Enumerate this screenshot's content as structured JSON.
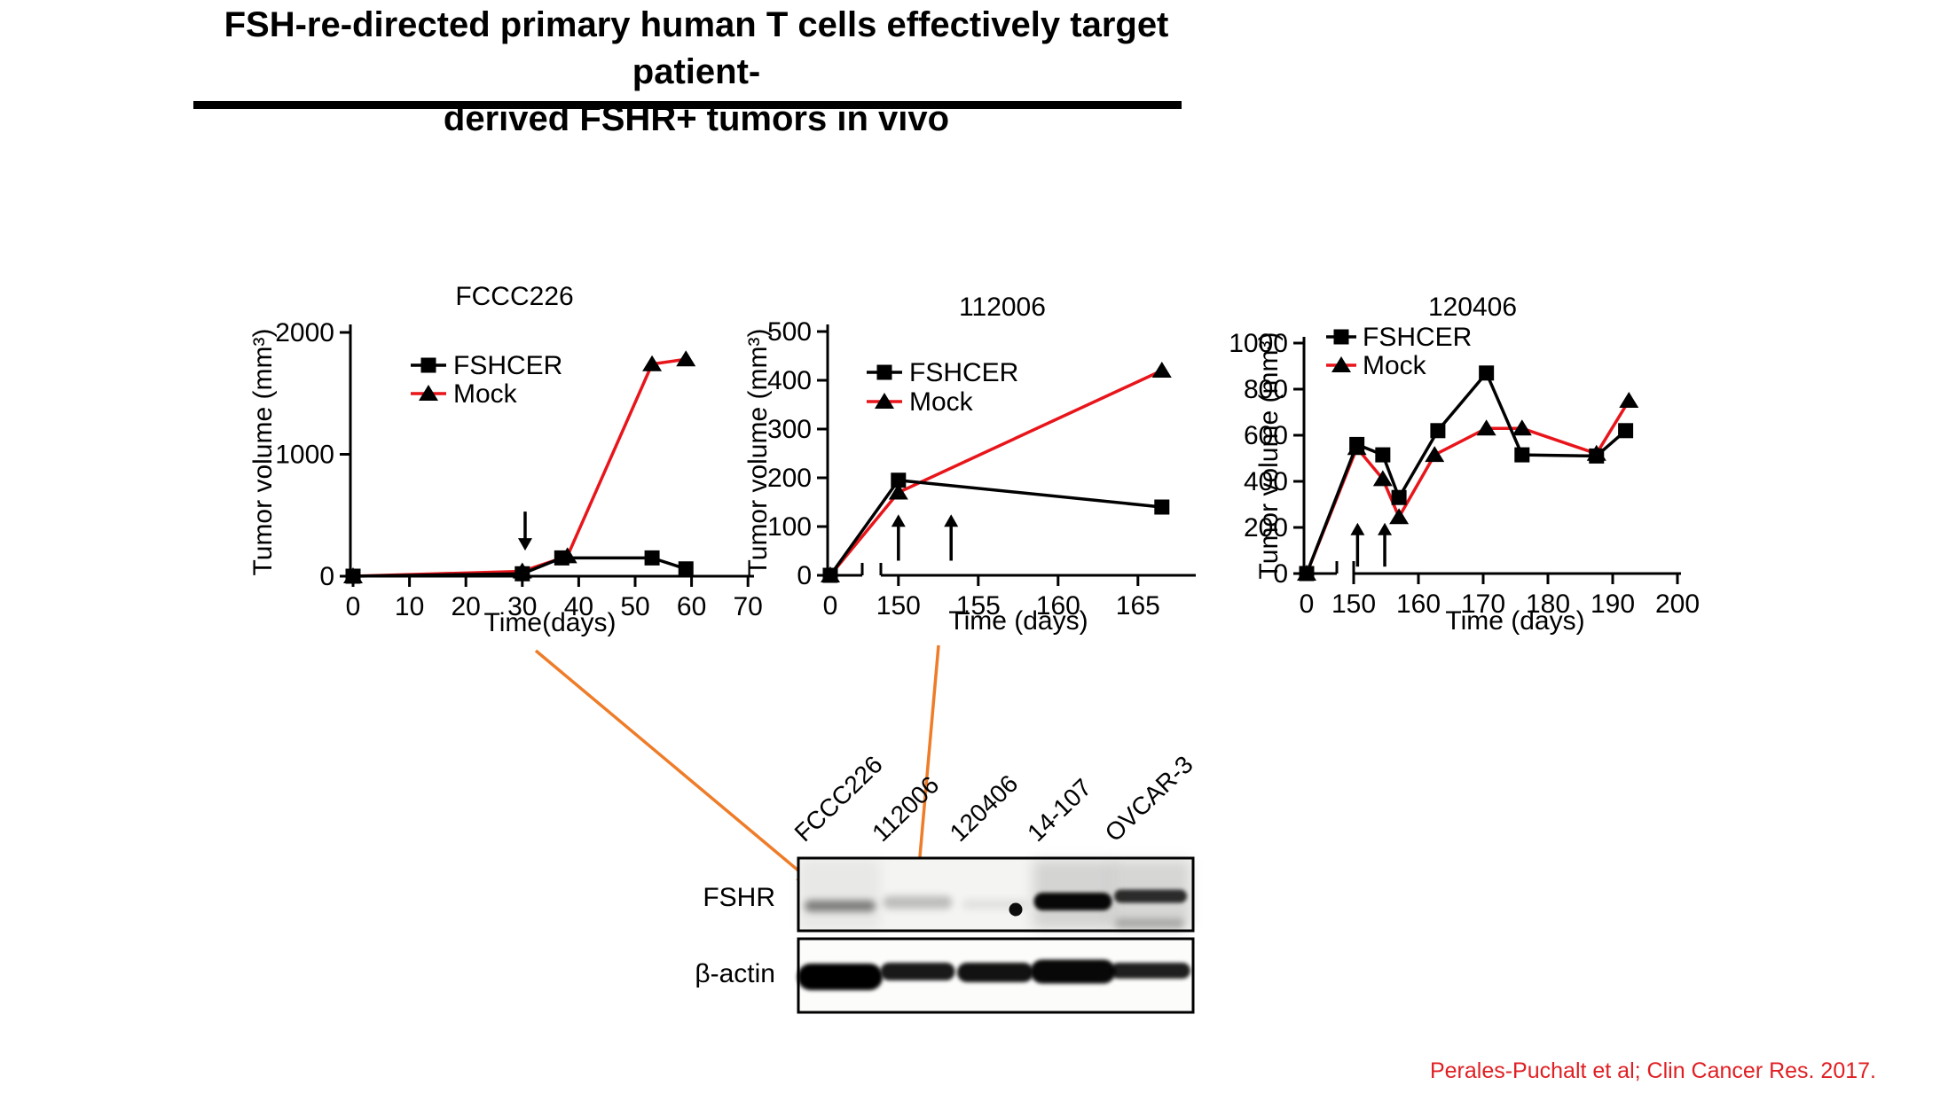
{
  "slide": {
    "title_line1": "FSH-re-directed primary human T cells effectively target patient-",
    "title_line2": "derived FSHR+ tumors in vivo",
    "citation": "Perales-Puchalt et al; Clin Cancer Res. 2017."
  },
  "colors": {
    "fshcer_line": "#000000",
    "mock_line": "#e8151b",
    "marker": "#000000",
    "annotation_arrow": "#ee7c28",
    "citation_text": "#e01f23",
    "title_text": "#000000"
  },
  "chart_data": [
    {
      "id": "FCCC226",
      "type": "line",
      "title": "FCCC226",
      "ylabel": "Tumor volume (mm³)",
      "xlabel": "Time(days)",
      "ylim": [
        0,
        2000
      ],
      "yticks": [
        0,
        1000,
        2000
      ],
      "xticks": [
        0,
        10,
        20,
        30,
        40,
        50,
        60,
        70
      ],
      "x_break": false,
      "legend_position": "upper-left",
      "series": [
        {
          "name": "FSHCER",
          "marker": "square",
          "line": "fshcer",
          "points": [
            [
              0,
              0
            ],
            [
              30,
              20
            ],
            [
              37,
              150
            ],
            [
              53,
              150
            ],
            [
              59,
              60
            ]
          ]
        },
        {
          "name": "Mock",
          "marker": "triangle",
          "line": "mock",
          "points": [
            [
              0,
              0
            ],
            [
              30,
              40
            ],
            [
              38,
              165
            ],
            [
              53,
              1740
            ],
            [
              59,
              1780
            ]
          ]
        }
      ],
      "treatment_arrows": {
        "direction": "down",
        "x": [
          30.5
        ],
        "from_value": 530,
        "to_value": 210
      }
    },
    {
      "id": "112006",
      "type": "line",
      "title": "112006",
      "ylabel": "Tumor volume (mm³)",
      "xlabel": "Time (days)",
      "ylim": [
        0,
        500
      ],
      "yticks": [
        0,
        100,
        200,
        300,
        400,
        500
      ],
      "xticks": [
        0,
        150,
        155,
        160,
        165
      ],
      "x_break": true,
      "x_right_range": [
        150,
        165
      ],
      "legend_position": "upper-left",
      "series": [
        {
          "name": "FSHCER",
          "marker": "square",
          "line": "fshcer",
          "points": [
            [
              0,
              0
            ],
            [
              150,
              195
            ],
            [
              166.5,
              140
            ]
          ]
        },
        {
          "name": "Mock",
          "marker": "triangle",
          "line": "mock",
          "points": [
            [
              0,
              0
            ],
            [
              150,
              170
            ],
            [
              166.5,
              420
            ]
          ]
        }
      ],
      "treatment_arrows": {
        "direction": "up",
        "x": [
          150,
          153.3
        ],
        "from_value": 30,
        "to_value": 125
      }
    },
    {
      "id": "120406",
      "type": "line",
      "title": "120406",
      "ylabel": "Tumor volume (mm³)",
      "xlabel": "Time (days)",
      "ylim": [
        0,
        1000
      ],
      "yticks": [
        0,
        200,
        400,
        600,
        800,
        1000
      ],
      "xticks": [
        0,
        150,
        160,
        170,
        180,
        190,
        200
      ],
      "x_break": true,
      "x_right_range": [
        150,
        200
      ],
      "legend_position": "upper-left",
      "series": [
        {
          "name": "FSHCER",
          "marker": "square",
          "line": "fshcer",
          "points": [
            [
              0,
              0
            ],
            [
              150.5,
              560
            ],
            [
              154.5,
              515
            ],
            [
              157,
              330
            ],
            [
              163,
              620
            ],
            [
              170.5,
              870
            ],
            [
              176,
              515
            ],
            [
              187.5,
              510
            ],
            [
              192,
              620
            ]
          ]
        },
        {
          "name": "Mock",
          "marker": "triangle",
          "line": "mock",
          "points": [
            [
              0,
              0
            ],
            [
              150.5,
              545
            ],
            [
              154.5,
              410
            ],
            [
              157,
              245
            ],
            [
              162.5,
              515
            ],
            [
              170.5,
              630
            ],
            [
              176,
              630
            ],
            [
              187.5,
              520
            ],
            [
              192.5,
              750
            ]
          ]
        }
      ],
      "treatment_arrows": {
        "direction": "up",
        "x": [
          150.6,
          154.8
        ],
        "from_value": 30,
        "to_value": 220
      }
    }
  ],
  "blot": {
    "lanes": [
      "FCCC226",
      "112006",
      "120406",
      "14-107",
      "OVCAR-3"
    ],
    "rows": [
      "FSHR",
      "β-actin"
    ],
    "fshr_band_intensity": [
      0.45,
      0.22,
      0.08,
      0.97,
      0.8
    ],
    "fshr_dot_artifact_lane": "120406",
    "actin_band_intensity": [
      1.0,
      0.9,
      0.93,
      0.97,
      0.88
    ]
  },
  "connector_arrows": [
    {
      "from": "FCCC226 tumor growth chart",
      "to": "FSHR blot lane FCCC226"
    },
    {
      "from": "112006 tumor growth chart",
      "to": "FSHR blot lane 112006"
    }
  ]
}
